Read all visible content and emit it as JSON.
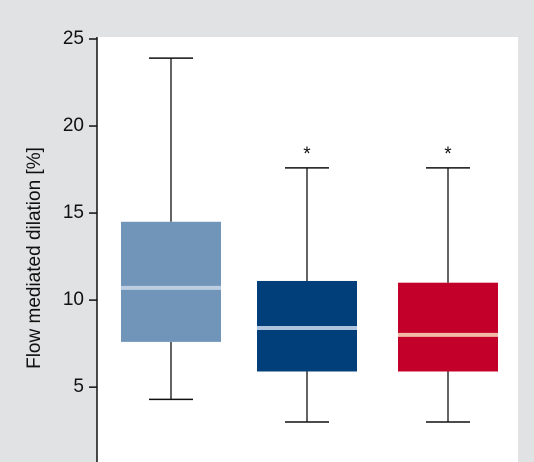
{
  "chart_data": {
    "type": "box",
    "ylabel": "Flow mediated dilation [%]",
    "ylim": [
      0.7,
      25
    ],
    "yticks": [
      5,
      10,
      15,
      20,
      25
    ],
    "boxes": [
      {
        "color": "#7194b9",
        "median_color": "#bccde2",
        "whisker_low": 4.3,
        "q1": 7.6,
        "median": 10.7,
        "q3": 14.5,
        "whisker_high": 23.9
      },
      {
        "color": "#003f7a",
        "median_color": "#aec3dc",
        "whisker_low": 3.0,
        "q1": 5.9,
        "median": 8.4,
        "q3": 11.1,
        "whisker_high": 17.6,
        "annotation": "*"
      },
      {
        "color": "#c20029",
        "median_color": "#f2b9a6",
        "whisker_low": 3.0,
        "q1": 5.9,
        "median": 8.0,
        "q3": 11.0,
        "whisker_high": 17.6,
        "annotation": "*"
      }
    ]
  }
}
